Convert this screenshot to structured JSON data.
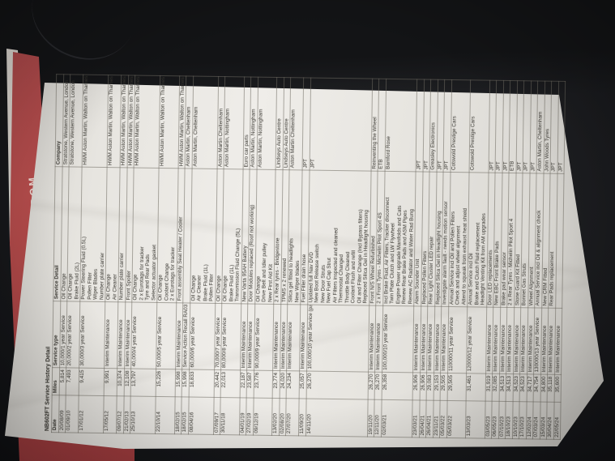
{
  "scene": {
    "desk_color": "#1c1d20",
    "red_booklet": {
      "label": "UNITED KINGDOM",
      "color": "#b04a4c"
    }
  },
  "document": {
    "title": "NB602FT Service History Detail",
    "columns": [
      "Date",
      "Miles",
      "Service type",
      "Service Detail",
      "Company"
    ],
    "rows": [
      {
        "date": "20/08/09",
        "miles": "5,814",
        "type": "10,000/1 year Service",
        "details": [
          "Oil Change"
        ],
        "company": "Stratstone, Western Avenue, London"
      },
      {
        "date": "01/09/10",
        "miles": "7,493",
        "type": "20,000/2 year Service",
        "details": [
          "Oil Change",
          "Brake Fluid (2L)"
        ],
        "company": "Stratstone, Western Avenue, London"
      },
      {
        "date": "17/01/12",
        "miles": "9,415",
        "type": "30,000/3 year Service",
        "details": [
          "Power Steering Fluid (0.5L)",
          "Pollen Filter",
          "Wiper Blades",
          "Number plate carrier"
        ],
        "company": "HWM Aston Martin, Walton on Thames"
      },
      {
        "date": "17/05/12",
        "miles": "9,991",
        "type": "Interim Maintenance",
        "details": [
          "Oil Change",
          "Air Cleaner"
        ],
        "company": "HWM Aston Martin, Walton on Thames"
      },
      {
        "date": "09/07/12",
        "miles": "10,374",
        "type": "Interim Maintenance",
        "details": [
          "Number plate carrier"
        ],
        "company": "HWM Aston Martin, Walton on Thames"
      },
      {
        "date": "21/02/13",
        "miles": "12,108",
        "type": "Interim Maintenance",
        "details": [
          "Front Spoiler"
        ],
        "company": "HWM Aston Martin, Walton on Thames"
      },
      {
        "date": "25/10/13",
        "miles": "13,797",
        "type": "40,000/4 year Service",
        "details": [
          "Oil Change",
          "2 x Eurotags for tracker",
          "Tyre and Rear Pads",
          "Selector actuator gasket"
        ],
        "company": "HWM Aston Martin, Walton on Thames"
      },
      {
        "date": "22/10/14",
        "miles": "15,226",
        "type": "50,000/5 year Service",
        "details": [
          "Oil Change",
          "Coolant Change",
          "2 x Eurotags for tracker"
        ],
        "company": "HWM Aston Martin, Walton on Thames"
      },
      {
        "date": "18/02/15",
        "miles": "15,998",
        "type": "Interim Maintenance",
        "details": [
          "Front assembly  Seat Heater / Cooler"
        ],
        "company": "HWM Aston Martin, Walton on Thames"
      },
      {
        "date": "18/02/15",
        "miles": "15,998",
        "type": "Service Action Recall RA03 0003 W.O.T.",
        "details": [
          ""
        ],
        "company": "Aston Martin, Cheltenham"
      },
      {
        "date": "08/04/16",
        "miles": "18,833",
        "type": "60,000/6 year Service",
        "details": [
          "Oil Change",
          "Air Cleaner",
          "Brake Fluid (1L)",
          "Pollen Filter"
        ],
        "company": "Aston Martin, Cheltenham"
      },
      {
        "date": "07/09/17",
        "miles": "20,442",
        "type": "70,000/7 year Service",
        "details": [
          "Oil Change"
        ],
        "company": "Aston Martin Cheltenham"
      },
      {
        "date": "30/11/18",
        "miles": "22,013",
        "type": "80,000/8 year Service",
        "details": [
          "Oil Change",
          "Brake Fluid (1L)",
          "Transmission Fluid Change (5L)"
        ],
        "company": "Aston Martin, Nottingham"
      },
      {
        "date": "04/01/19",
        "miles": "22,187",
        "type": "Interim Maintenance",
        "details": [
          "New Varta 95AH Battery"
        ],
        "company": "Euro car parts"
      },
      {
        "date": "27/02/19",
        "miles": "23,587",
        "type": "Interim Maintenance",
        "details": [
          "Door Modules replaced (Roof not working)"
        ],
        "company": "Aston Martin, Nottingham"
      },
      {
        "date": "09/12/19",
        "miles": "23,776",
        "type": "90,000/9 year Service",
        "details": [
          "Oil Change",
          "Drive Belt and Idler pulley",
          "New First Aid Kit"
        ],
        "company": "Aston Martin, Nottingham"
      },
      {
        "date": "13/02/20",
        "miles": "23,774",
        "type": "Interim Maintenance",
        "details": [
          "2 x Rear tyres - Bridgestone"
        ],
        "company": "Lindseys Auto Centre"
      },
      {
        "date": "02/08/20",
        "miles": "24,020",
        "type": "Interim Maintenance",
        "details": [
          "TPMS x 2 renewed"
        ],
        "company": "Lindseys Auto Centre"
      },
      {
        "date": "27/07/20",
        "miles": "24,234",
        "type": "Interim Maintenance",
        "details": [
          "Silica gel fitted to headlights",
          "New Wiper blades"
        ],
        "company": "Aston Martin Cheltenham"
      },
      {
        "date": "11/09/20",
        "miles": "25,057",
        "type": "Interim Maintenance",
        "details": [
          "Fuel Filler drain hose"
        ],
        "company": "JPT"
      },
      {
        "date": "14/11/20",
        "miles": "26,270",
        "type": "100,000/10 year Service (part)",
        "details": [
          "Updated full Nav DVD",
          "New Boot Release switch",
          "New Door Struts",
          "New Fuel Cap Strut",
          "Air Filters inspected and cleaned",
          "Thermostat Changed",
          "Throttle Body Cleaned",
          "Coolant Flush and refill",
          "Oil and Filter Change (Incl Bypass filters)",
          "Replaced Silica Gel in Headlight housing"
        ],
        "company": "JPT"
      },
      {
        "date": "19/11/20",
        "miles": "26,270",
        "type": "Interim Maintenance",
        "details": [
          "Front N/S Wheel Refurbished"
        ],
        "company": "Reinventing the Wheel"
      },
      {
        "date": "12/11/20",
        "miles": "26,270",
        "type": "Interim Maintenance",
        "details": [
          "2 x Front Tyres - Michelin Pilot Sport 4S"
        ],
        "company": "ETB"
      },
      {
        "date": "02/03/21",
        "miles": "26,358",
        "type": "100,000/10 year Service",
        "details": [
          "Incl Brake Fluid, Air Filters, Tracker disconnect",
          "Twin Plate Clutch and LW Flywheel",
          "Engine Power upgrade Manifolds and Cats",
          "Renew Rear Brake Pads and ASM Pipes",
          "Renew AC Radiator and Water Rad Bung"
        ],
        "company": "Bamford Rose"
      },
      {
        "date": "23/03/21",
        "miles": "26,906",
        "type": "Interim Maintenance",
        "details": [
          "Alarm Sounder Unit"
        ],
        "company": "JPT"
      },
      {
        "date": "26/04/21",
        "miles": "26,906",
        "type": "Interim Maintenance",
        "details": [
          "Replaced Pollen Filters"
        ],
        "company": "JPT"
      },
      {
        "date": "26/04/21",
        "miles": "29,083",
        "type": "Interim Maintenance",
        "details": [
          "Rear Light Cluster LED repair"
        ],
        "company": "Greasley Electronics"
      },
      {
        "date": "23/11/21",
        "miles": "29,153",
        "type": "Interim Maintenance",
        "details": [
          "Replaced Silica Gel in Headlight housing"
        ],
        "company": "JPT"
      },
      {
        "date": "05/03/22",
        "miles": "29,505",
        "type": "Interim Maintenance",
        "details": [
          "Investigate alarm fault - needs motion sensor"
        ],
        "company": "JPT"
      },
      {
        "date": "05/03/22",
        "miles": "29,505",
        "type": "110000/11 year Service",
        "details": [
          "Annual Service incl Oil and Pollen Filters",
          "Check and adjust wheel alignment",
          "Attend to squeak from exhaust heat shield"
        ],
        "company": "Cotswold Prestige Cars"
      },
      {
        "date": "13/03/23",
        "miles": "31,461",
        "type": "120000/12 year Service",
        "details": [
          "Annual Service incl Oil",
          "Brake and Clutch Fluid replacement",
          "Headlight Venting Kit from AM upgrades"
        ],
        "company": "Cotswold Prestige Cars"
      },
      {
        "date": "03/05/23",
        "miles": "31,919",
        "type": "Interim Maintenance",
        "details": [
          "Door LED replacements"
        ],
        "company": "JPT"
      },
      {
        "date": "06/05/23",
        "miles": "32,085",
        "type": "Interim Maintenance",
        "details": [
          "New EBC Front Brake Pads"
        ],
        "company": "JPT"
      },
      {
        "date": "07/10/23",
        "miles": "34,513",
        "type": "Interim Maintenance",
        "details": [
          "Brake pad wear sensor"
        ],
        "company": "JPT"
      },
      {
        "date": "18/10/23",
        "miles": "34,513",
        "type": "Interim Maintenance",
        "details": [
          "2 x Rear Tyres - Michelin Pilot Sport 4"
        ],
        "company": "ETB"
      },
      {
        "date": "10/10/23",
        "miles": "34,523",
        "type": "Interim Maintenance",
        "details": [
          "Stone Guard Kit Fitted"
        ],
        "company": "JPT"
      },
      {
        "date": "17/10/23",
        "miles": "34,523",
        "type": "Interim Maintenance",
        "details": [
          "Bonnet Gas Struts"
        ],
        "company": "JPT"
      },
      {
        "date": "12/02/24",
        "miles": "34,717",
        "type": "Interim Maintenance",
        "details": [
          "Wheel Alignment"
        ],
        "company": "JPT"
      },
      {
        "date": "07/03/24",
        "miles": "34,754",
        "type": "130000/13 year Service",
        "details": [
          "Annual Service incl Oil & alignment check"
        ],
        "company": "Aston Martin, Cheltenham"
      },
      {
        "date": "15/03/24",
        "miles": "34,800",
        "type": "Interim Maintenance",
        "details": [
          "New CRM Fitted"
        ],
        "company": "John Woods Tyres"
      },
      {
        "date": "30/04/24",
        "miles": "35,118",
        "type": "Interim Maintenance",
        "details": [
          "Rear Pads replacement"
        ],
        "company": "JPT"
      },
      {
        "date": "22/05/24",
        "miles": "35,600",
        "type": "Interim Maintenance",
        "details": [
          ""
        ],
        "company": "JPT"
      }
    ]
  }
}
